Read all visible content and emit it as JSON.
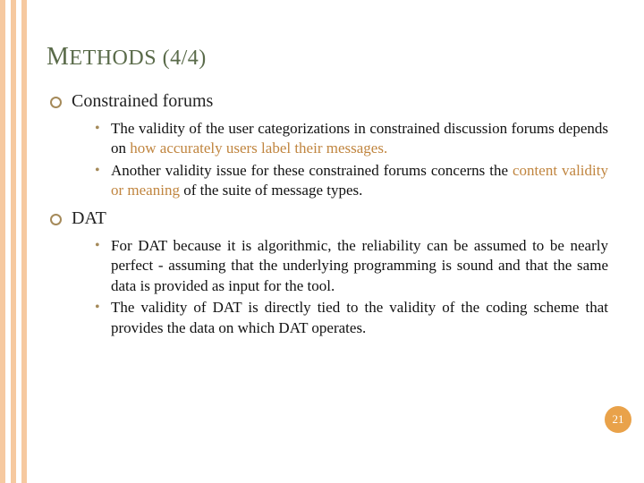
{
  "colors": {
    "stripe": "#f6c9a0",
    "title": "#5a6b4a",
    "bullet_ring": "#a58a5a",
    "bullet_dot": "#a58a5a",
    "accent_text": "#c0853f",
    "badge_bg": "#e9a24a",
    "badge_text": "#ffffff",
    "body_text": "#111111",
    "background": "#ffffff"
  },
  "typography": {
    "title_fontsize": 24,
    "section_fontsize": 20,
    "body_fontsize": 17,
    "font_family": "Georgia, serif"
  },
  "title_plain": "METHODS (4/4)",
  "sections": [
    {
      "label": "Constrained forums",
      "items": [
        {
          "pre": "The validity of the user categorizations in constrained discussion forums depends on ",
          "accent": "how accurately users label their messages.",
          "post": ""
        },
        {
          "pre": "Another validity issue for these constrained forums concerns the ",
          "accent": "content validity or meaning",
          "post": " of the suite of message types."
        }
      ]
    },
    {
      "label": "DAT",
      "items": [
        {
          "pre": "For DAT because it is algorithmic, the reliability can be assumed to be nearly perfect - assuming that the underlying programming is sound and that the same data is provided as input for the tool.",
          "accent": "",
          "post": ""
        },
        {
          "pre": "The validity of DAT is directly tied to the validity of the coding scheme that provides the data on which DAT operates.",
          "accent": "",
          "post": ""
        }
      ]
    }
  ],
  "page_number": "21"
}
